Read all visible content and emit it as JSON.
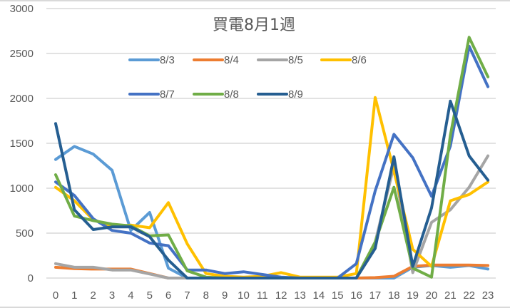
{
  "chart_data": {
    "type": "line",
    "title": "買電8月1週",
    "xlabel": "",
    "ylabel": "",
    "ylim": [
      0,
      3000
    ],
    "yticks": [
      0,
      500,
      1000,
      1500,
      2000,
      2500,
      3000
    ],
    "grid": true,
    "legend_position": "top-inside",
    "categories": [
      "0",
      "1",
      "2",
      "3",
      "4",
      "5",
      "6",
      "7",
      "8",
      "9",
      "10",
      "11",
      "12",
      "13",
      "14",
      "15",
      "16",
      "17",
      "18",
      "19",
      "20",
      "21",
      "22",
      "23"
    ],
    "series": [
      {
        "name": "8/3",
        "color": "#5B9BD5",
        "values": [
          1320,
          1465,
          1380,
          1200,
          530,
          730,
          110,
          0,
          0,
          0,
          0,
          0,
          0,
          0,
          0,
          0,
          0,
          0,
          0,
          120,
          140,
          120,
          140,
          100
        ]
      },
      {
        "name": "8/4",
        "color": "#ED7D31",
        "values": [
          120,
          105,
          100,
          100,
          100,
          50,
          0,
          0,
          0,
          0,
          0,
          0,
          0,
          0,
          0,
          0,
          0,
          5,
          20,
          130,
          145,
          145,
          145,
          140
        ]
      },
      {
        "name": "8/5",
        "color": "#A5A5A5",
        "values": [
          160,
          120,
          120,
          90,
          90,
          45,
          0,
          0,
          0,
          0,
          0,
          0,
          0,
          0,
          0,
          0,
          0,
          400,
          1250,
          60,
          620,
          760,
          1010,
          1360
        ]
      },
      {
        "name": "8/6",
        "color": "#FFC000",
        "values": [
          1010,
          860,
          650,
          570,
          590,
          560,
          840,
          380,
          50,
          20,
          10,
          20,
          60,
          10,
          10,
          10,
          50,
          2010,
          1190,
          320,
          130,
          860,
          930,
          1070
        ]
      },
      {
        "name": "8/7",
        "color": "#4472C4",
        "values": [
          1070,
          920,
          660,
          530,
          500,
          390,
          360,
          90,
          90,
          50,
          70,
          40,
          10,
          0,
          0,
          0,
          160,
          970,
          1600,
          1340,
          910,
          1470,
          2580,
          2130
        ]
      },
      {
        "name": "8/8",
        "color": "#70AD47",
        "values": [
          1150,
          690,
          640,
          600,
          580,
          470,
          480,
          80,
          10,
          0,
          0,
          0,
          0,
          0,
          0,
          0,
          0,
          400,
          1010,
          110,
          10,
          1590,
          2680,
          2240
        ]
      },
      {
        "name": "8/9",
        "color": "#255E91",
        "values": [
          1720,
          760,
          540,
          570,
          570,
          460,
          200,
          0,
          0,
          0,
          0,
          0,
          0,
          0,
          0,
          0,
          0,
          330,
          1350,
          130,
          780,
          1970,
          1360,
          1090
        ]
      }
    ]
  },
  "colors": {
    "gridline": "#D9D9D9",
    "text": "#595959"
  }
}
